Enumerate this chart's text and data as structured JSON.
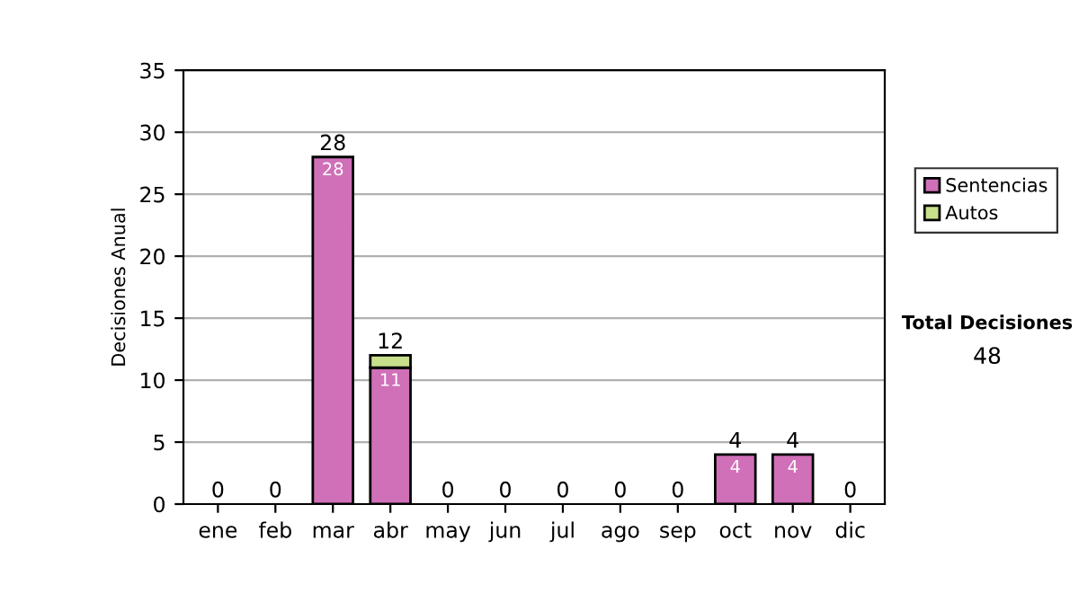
{
  "chart_data": {
    "type": "bar",
    "stacked": true,
    "ylabel": "Decisiones Anual",
    "categories": [
      "ene",
      "feb",
      "mar",
      "abr",
      "may",
      "jun",
      "jul",
      "ago",
      "sep",
      "oct",
      "nov",
      "dic"
    ],
    "series": [
      {
        "name": "Sentencias",
        "color": "#d070b8",
        "values": [
          0,
          0,
          28,
          11,
          0,
          0,
          0,
          0,
          0,
          4,
          4,
          0
        ],
        "value_labels": [
          null,
          null,
          "28",
          "11",
          null,
          null,
          null,
          null,
          null,
          "4",
          "4",
          null
        ]
      },
      {
        "name": "Autos",
        "color": "#c8e08c",
        "values": [
          0,
          0,
          0,
          1,
          0,
          0,
          0,
          0,
          0,
          0,
          0,
          0
        ]
      }
    ],
    "totals": [
      "0",
      "0",
      "28",
      "12",
      "0",
      "0",
      "0",
      "0",
      "0",
      "4",
      "4",
      "0"
    ],
    "ylim": [
      0,
      35
    ],
    "yticks": [
      0,
      5,
      10,
      15,
      20,
      25,
      30,
      35
    ],
    "grid": "y",
    "legend": "right",
    "annotations": [
      "Total Decisiones",
      "48"
    ]
  }
}
